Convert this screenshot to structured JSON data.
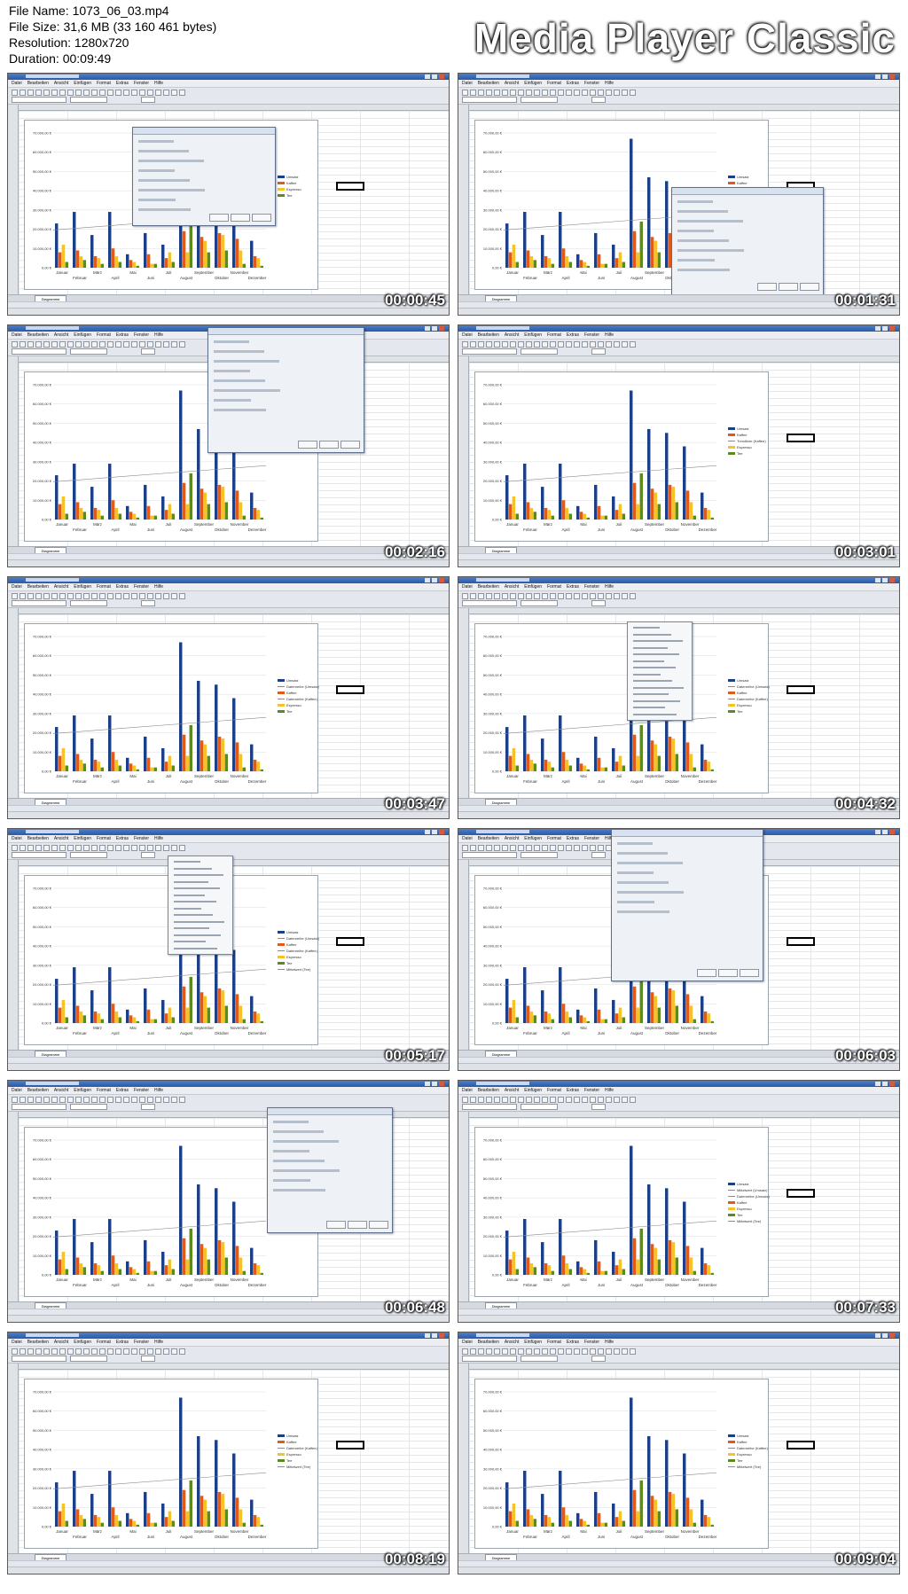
{
  "file_info": {
    "file_name": "File Name: 1073_06_03.mp4",
    "file_size": "File Size: 31,6 MB (33 160 461 bytes)",
    "resolution": "Resolution: 1280x720",
    "duration": "Duration: 00:09:49"
  },
  "brand": "Media Player Classic",
  "app": {
    "menu": [
      "Datei",
      "Bearbeiten",
      "Ansicht",
      "Einfügen",
      "Format",
      "Extras",
      "Fenster",
      "Hilfe"
    ],
    "sheet_tab": "Diagramme"
  },
  "colors": {
    "umsatz": "#1d3f86",
    "kaffee": "#e05a1a",
    "espresso": "#f5c22a",
    "tee": "#5d8a1e",
    "trend": "#8a8a8a"
  },
  "thumbnails": [
    {
      "timestamp": "00:00:45",
      "legend": [
        "Umsatz",
        "Kaffee",
        "Espresso",
        "Tee"
      ],
      "dialog": "chart-type",
      "menu": false
    },
    {
      "timestamp": "00:01:31",
      "legend": [
        "Umsatz",
        "Kaffee",
        "Trendlinie (Kaffee)",
        "Espresso",
        "Tee"
      ],
      "dialog": "trendline",
      "menu": false
    },
    {
      "timestamp": "00:02:16",
      "legend": [],
      "dialog": "trendline-big",
      "menu": false
    },
    {
      "timestamp": "00:03:01",
      "legend": [
        "Umsatz",
        "Kaffee",
        "Trendlinie (Kaffee)",
        "Espresso",
        "Tee"
      ],
      "dialog": "none",
      "menu": false
    },
    {
      "timestamp": "00:03:47",
      "legend": [
        "Umsatz",
        "Datenreihe (Umsatz)",
        "Kaffee",
        "Datenreihe (Kaffee)",
        "Espresso",
        "Tee"
      ],
      "dialog": "none",
      "menu": false
    },
    {
      "timestamp": "00:04:32",
      "legend": [
        "Umsatz",
        "Datenreihe (Umsatz)",
        "Kaffee",
        "Datenreihe (Kaffee)",
        "Espresso",
        "Tee"
      ],
      "dialog": "none",
      "menu": true
    },
    {
      "timestamp": "00:05:17",
      "legend": [
        "Umsatz",
        "Datenreihe (Umsatz)",
        "Kaffee",
        "Datenreihe (Kaffee)",
        "Espresso",
        "Tee",
        "Mittelwert (Tee)"
      ],
      "dialog": "none",
      "menu": true
    },
    {
      "timestamp": "00:06:03",
      "legend": [],
      "dialog": "errorbars",
      "menu": false
    },
    {
      "timestamp": "00:06:48",
      "legend": [],
      "dialog": "errorbars",
      "menu": false
    },
    {
      "timestamp": "00:07:33",
      "legend": [
        "Umsatz",
        "Mittelwert (Umsatz)",
        "Datenreihe (Umsatz)",
        "Kaffee",
        "Espresso",
        "Tee",
        "Mittelwert (Tee)"
      ],
      "dialog": "none",
      "menu": false
    },
    {
      "timestamp": "00:08:19",
      "legend": [
        "Umsatz",
        "Kaffee",
        "Datenreihe (Kaffee)",
        "Espresso",
        "Tee",
        "Mittelwert (Tee)"
      ],
      "dialog": "none",
      "menu": false
    },
    {
      "timestamp": "00:09:04",
      "legend": [
        "Umsatz",
        "Kaffee",
        "Datenreihe (Kaffee)",
        "Espresso",
        "Tee",
        "Mittelwert (Tee)"
      ],
      "dialog": "none",
      "menu": false
    }
  ],
  "chart_data": {
    "type": "bar",
    "categories": [
      "Januar",
      "Februar",
      "März",
      "April",
      "Mai",
      "Juni",
      "Juli",
      "August",
      "September",
      "Oktober",
      "November",
      "Dezember"
    ],
    "series": [
      {
        "name": "Umsatz",
        "values": [
          23000,
          29000,
          17000,
          29000,
          7000,
          18000,
          12000,
          67000,
          47000,
          45000,
          38000,
          14000
        ]
      },
      {
        "name": "Kaffee",
        "values": [
          8000,
          9000,
          6000,
          10000,
          4000,
          7000,
          5000,
          19000,
          16000,
          18000,
          15000,
          6000
        ]
      },
      {
        "name": "Espresso",
        "values": [
          12000,
          6000,
          5000,
          6000,
          3000,
          2000,
          8000,
          8000,
          14000,
          17000,
          9000,
          5000
        ]
      },
      {
        "name": "Tee",
        "values": [
          3000,
          4000,
          2000,
          3000,
          1000,
          2000,
          3000,
          24000,
          8000,
          9000,
          2000,
          1000
        ]
      }
    ],
    "ylabels": [
      "0,00 €",
      "10.000,00 €",
      "20.000,00 €",
      "30.000,00 €",
      "40.000,00 €",
      "50.000,00 €",
      "60.000,00 €",
      "70.000,00 €"
    ],
    "ylim": [
      0,
      70000
    ]
  }
}
